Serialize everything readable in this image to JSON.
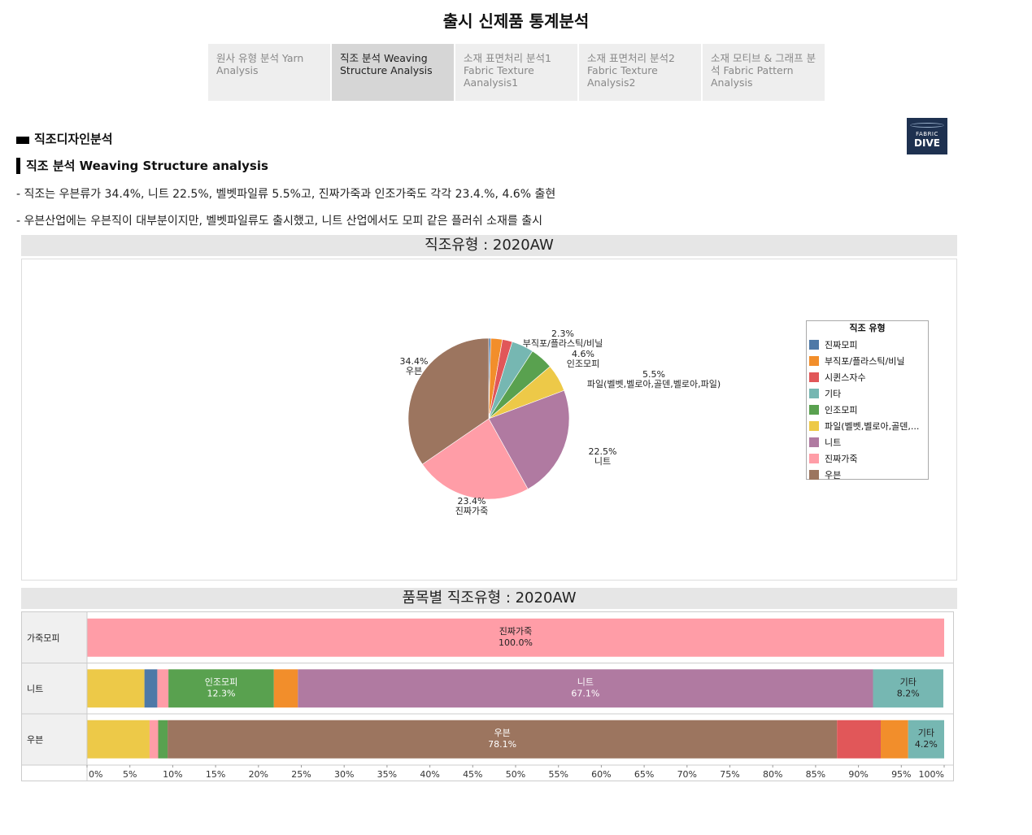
{
  "page": {
    "title": "출시 신제품 통계분석"
  },
  "tabs": [
    {
      "label": "원사 유형 분석  Yarn Analysis",
      "active": false
    },
    {
      "label": "직조 분석 Weaving Structure Analysis",
      "active": true
    },
    {
      "label": "소재 표면처리 분석1 Fabric Texture Aanalysis1",
      "active": false
    },
    {
      "label": "소재 표면처리 분석2 Fabric Texture Analysis2",
      "active": false
    },
    {
      "label": "소재 모티브 & 그래프 분석 Fabric Pattern Analysis",
      "active": false
    }
  ],
  "section": {
    "heading": "직조디자인분석",
    "subheading": "직조 분석 Weaving Structure analysis",
    "bullets": [
      "- 직조는 우븐류가 34.4%, 니트 22.5%, 벨벳파일류 5.5%고, 진짜가죽과 인조가죽도 각각 23.4.%, 4.6% 출현",
      "- 우븐산업에는 우븐직이 대부분이지만, 벨벳파일류도 출시했고, 니트 산업에서도 모피 같은 플러쉬 소재를 출시"
    ]
  },
  "logo": {
    "line1": "FABRIC",
    "line2": "DIVE"
  },
  "colors": {
    "진짜모피": "#4e79a7",
    "부직포/플라스틱/비닐": "#f28e2b",
    "시퀸스자수": "#e15759",
    "기타": "#76b7b2",
    "인조모피": "#59a14f",
    "파일(벨벳,벨로아,골덴,벨로아,파일)": "#edc948",
    "니트": "#b07aa1",
    "진짜가죽": "#ff9da7",
    "우븐": "#9c755f"
  },
  "chart_data": [
    {
      "type": "pie",
      "title": "직조유형 : 2020AW",
      "legend_title": "직조 유형",
      "legend_position": "right",
      "slices": [
        {
          "label": "진짜모피",
          "legend_label": "진짜모피",
          "value": 0.4,
          "show_label": false
        },
        {
          "label": "부직포/플라스틱/비닐",
          "legend_label": "부직포/플라스틱/비닐",
          "value": 2.3,
          "show_label": true,
          "value_text": "2.3%"
        },
        {
          "label": "시퀸스자수",
          "legend_label": "시퀸스자수",
          "value": 2.0,
          "show_label": false
        },
        {
          "label": "기타",
          "legend_label": "기타",
          "value": 4.4,
          "show_label": false
        },
        {
          "label": "인조모피",
          "legend_label": "인조모피",
          "value": 4.6,
          "show_label": true,
          "value_text": "4.6%"
        },
        {
          "label": "파일(벨벳,벨로아,골덴,벨로아,파일)",
          "legend_label": "파일(벨벳,벨로아,골덴,...",
          "value": 5.5,
          "show_label": true,
          "value_text": "5.5%"
        },
        {
          "label": "니트",
          "legend_label": "니트",
          "value": 22.5,
          "show_label": true,
          "value_text": "22.5%"
        },
        {
          "label": "진짜가죽",
          "legend_label": "진짜가죽",
          "value": 23.4,
          "show_label": true,
          "value_text": "23.4%"
        },
        {
          "label": "우븐",
          "legend_label": "우븐",
          "value": 34.4,
          "show_label": true,
          "value_text": "34.4%"
        }
      ]
    },
    {
      "type": "bar",
      "orientation": "horizontal",
      "stacked": true,
      "title": "품목별 직조유형 : 2020AW",
      "xlim": [
        0,
        100
      ],
      "x_ticks": [
        "0%",
        "5%",
        "10%",
        "15%",
        "20%",
        "25%",
        "30%",
        "35%",
        "40%",
        "45%",
        "50%",
        "55%",
        "60%",
        "65%",
        "70%",
        "75%",
        "80%",
        "85%",
        "90%",
        "95%",
        "100%"
      ],
      "rows": [
        {
          "category": "가죽모피",
          "segments": [
            {
              "label": "진짜가죽",
              "value": 100.0,
              "text": "100.0%",
              "show_label": true
            }
          ]
        },
        {
          "category": "니트",
          "segments": [
            {
              "label": "파일(벨벳,벨로아,골덴,벨로아,파일)",
              "value": 6.7,
              "show_label": false
            },
            {
              "label": "진짜모피",
              "value": 1.5,
              "show_label": false
            },
            {
              "label": "진짜가죽",
              "value": 1.3,
              "show_label": false
            },
            {
              "label": "인조모피",
              "value": 12.3,
              "text": "12.3%",
              "show_label": true
            },
            {
              "label": "부직포/플라스틱/비닐",
              "value": 2.8,
              "show_label": false
            },
            {
              "label": "니트",
              "value": 67.1,
              "text": "67.1%",
              "show_label": true
            },
            {
              "label": "기타",
              "value": 8.2,
              "text": "8.2%",
              "show_label": true
            }
          ]
        },
        {
          "category": "우븐",
          "segments": [
            {
              "label": "파일(벨벳,벨로아,골덴,벨로아,파일)",
              "value": 7.3,
              "show_label": false
            },
            {
              "label": "진짜가죽",
              "value": 1.0,
              "show_label": false
            },
            {
              "label": "인조모피",
              "value": 1.1,
              "show_label": false
            },
            {
              "label": "우븐",
              "value": 78.1,
              "text": "78.1%",
              "show_label": true
            },
            {
              "label": "시퀸스자수",
              "value": 5.1,
              "show_label": false
            },
            {
              "label": "부직포/플라스틱/비닐",
              "value": 3.2,
              "show_label": false
            },
            {
              "label": "기타",
              "value": 4.2,
              "text": "4.2%",
              "show_label": true
            }
          ]
        }
      ]
    }
  ]
}
